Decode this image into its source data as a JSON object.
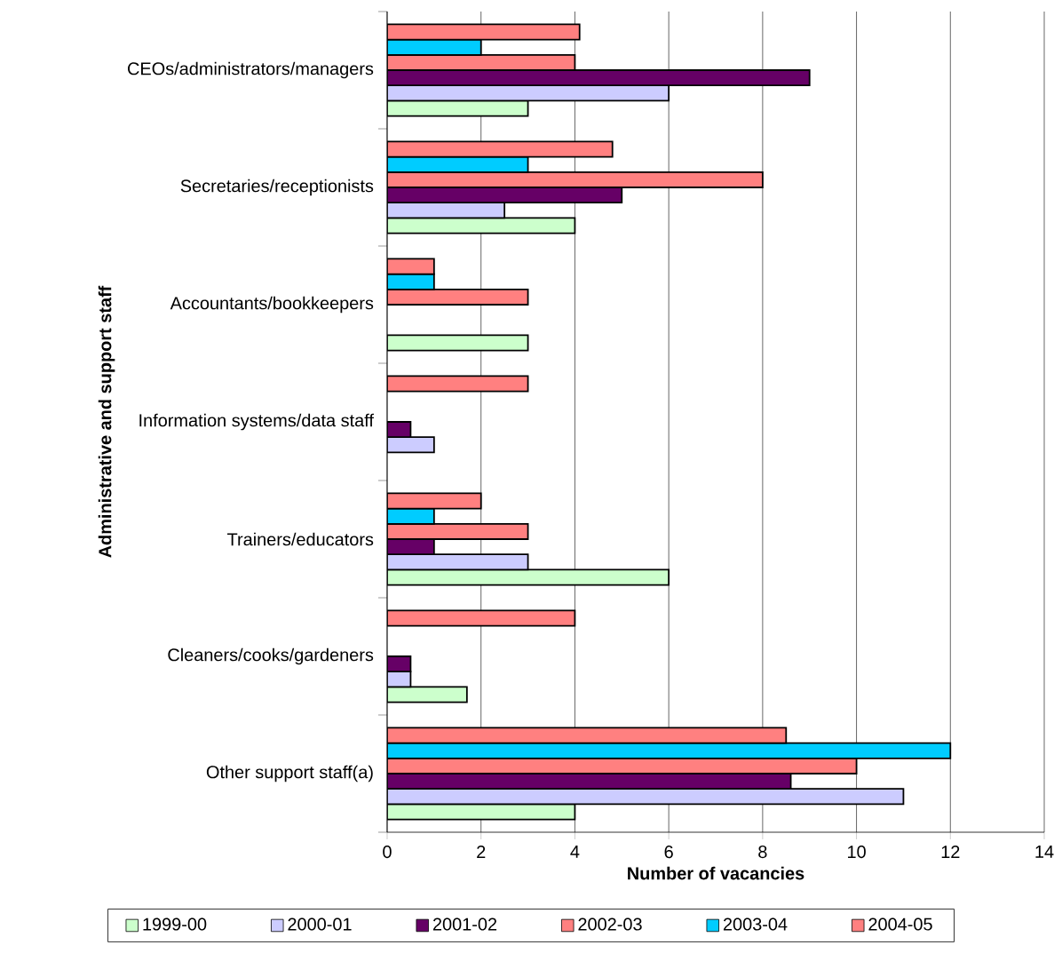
{
  "chart_data": {
    "type": "bar",
    "orientation": "horizontal",
    "xlabel": "Number of vacancies",
    "ylabel": "Administrative and support staff",
    "categories": [
      "CEOs/administrators/managers",
      "Secretaries/receptionists",
      "Accountants/bookkeepers",
      "Information systems/data staff",
      "Trainers/educators",
      "Cleaners/cooks/gardeners",
      "Other support staff(a)"
    ],
    "series": [
      {
        "name": "1999-00",
        "color": "#ccffcc",
        "values": [
          3,
          4,
          3,
          null,
          6,
          1.7,
          4
        ]
      },
      {
        "name": "2000-01",
        "color": "#ccccff",
        "values": [
          6,
          2.5,
          null,
          1,
          3,
          0.5,
          11
        ]
      },
      {
        "name": "2001-02",
        "color": "#660066",
        "values": [
          9,
          5,
          null,
          0.5,
          1,
          0.5,
          8.6
        ]
      },
      {
        "name": "2002-03",
        "color": "#ff8080",
        "values": [
          4,
          8,
          3,
          null,
          3,
          null,
          10
        ]
      },
      {
        "name": "2003-04",
        "color": "#00ccff",
        "values": [
          2,
          3,
          1,
          null,
          1,
          null,
          12
        ]
      },
      {
        "name": "2004-05",
        "color": "#ff8080",
        "values": [
          4.1,
          4.8,
          1,
          3,
          2,
          4,
          8.5
        ]
      }
    ],
    "xlim": [
      0,
      14
    ],
    "xticks": [
      0,
      2,
      4,
      6,
      8,
      10,
      12,
      14
    ],
    "grid": "x",
    "legend": "bottom"
  }
}
